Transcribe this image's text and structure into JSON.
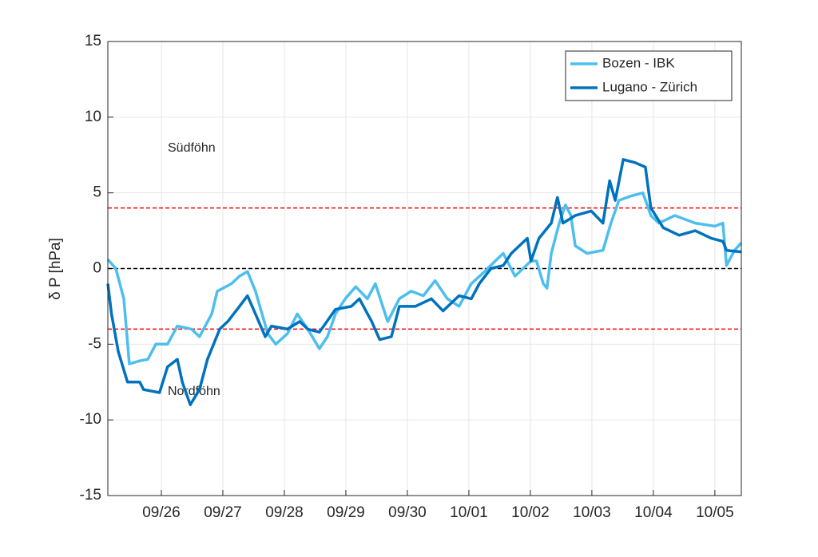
{
  "chart_data": {
    "type": "line",
    "ylabel": "δ P [hPa]",
    "xlim": [
      0.13,
      10.43
    ],
    "ylim": [
      -15,
      15
    ],
    "yticks": [
      -15,
      -10,
      -5,
      0,
      5,
      10,
      15
    ],
    "xticks": [
      {
        "value": 1,
        "label": "09/26"
      },
      {
        "value": 2,
        "label": "09/27"
      },
      {
        "value": 3,
        "label": "09/28"
      },
      {
        "value": 4,
        "label": "09/29"
      },
      {
        "value": 5,
        "label": "09/30"
      },
      {
        "value": 6,
        "label": "10/01"
      },
      {
        "value": 7,
        "label": "10/02"
      },
      {
        "value": 8,
        "label": "10/03"
      },
      {
        "value": 9,
        "label": "10/04"
      },
      {
        "value": 10,
        "label": "10/05"
      }
    ],
    "grid": true,
    "legend": "upper right",
    "reference_lines": [
      {
        "value": 4,
        "color": "#ff0000"
      },
      {
        "value": -4,
        "color": "#ff0000"
      },
      {
        "value": 0,
        "color": "#000000"
      }
    ],
    "annotations": [
      {
        "text": "Südföhn",
        "color": "#ff0000"
      },
      {
        "text": "Nordföhn",
        "color": "#000000"
      }
    ],
    "series": [
      {
        "name": "Bozen - IBK",
        "color": "#4dbeee",
        "x": [
          0.13,
          0.26,
          0.39,
          0.48,
          0.65,
          0.78,
          0.91,
          1.1,
          1.26,
          1.49,
          1.62,
          1.82,
          1.91,
          2.14,
          2.27,
          2.4,
          2.53,
          2.73,
          2.86,
          3.05,
          3.21,
          3.38,
          3.57,
          3.7,
          3.83,
          3.99,
          4.16,
          4.35,
          4.48,
          4.68,
          4.87,
          5.06,
          5.26,
          5.45,
          5.65,
          5.84,
          6.04,
          6.23,
          6.43,
          6.56,
          6.75,
          6.88,
          7.01,
          7.1,
          7.21,
          7.27,
          7.34,
          7.47,
          7.57,
          7.66,
          7.73,
          7.92,
          8.18,
          8.31,
          8.44,
          8.64,
          8.83,
          8.96,
          9.09,
          9.35,
          9.68,
          10.0,
          10.13,
          10.19,
          10.32,
          10.43
        ],
        "values": [
          0.6,
          0,
          -2,
          -6.3,
          -6.1,
          -6,
          -5,
          -5,
          -3.8,
          -4,
          -4.5,
          -3,
          -1.5,
          -1,
          -0.5,
          -0.2,
          -1.5,
          -4.3,
          -5,
          -4.3,
          -3,
          -4,
          -5.3,
          -4.5,
          -3,
          -2,
          -1.2,
          -2,
          -1,
          -3.5,
          -2,
          -1.5,
          -1.8,
          -0.8,
          -2,
          -2.5,
          -1,
          -0.3,
          0.5,
          1,
          -0.5,
          0,
          0.5,
          0.5,
          -1,
          -1.3,
          1,
          3,
          4.2,
          3.5,
          1.5,
          1,
          1.2,
          3,
          4.5,
          4.8,
          5,
          3.5,
          3,
          3.5,
          3,
          2.8,
          3,
          0.2,
          1.2,
          1.7
        ]
      },
      {
        "name": "Lugano - Zürich",
        "color": "#0072bd",
        "x": [
          0.13,
          0.19,
          0.3,
          0.45,
          0.65,
          0.71,
          0.97,
          1.1,
          1.26,
          1.34,
          1.47,
          1.62,
          1.75,
          1.95,
          2.08,
          2.27,
          2.4,
          2.53,
          2.69,
          2.79,
          3.05,
          3.25,
          3.38,
          3.57,
          3.83,
          4.09,
          4.22,
          4.42,
          4.55,
          4.74,
          4.87,
          5.13,
          5.39,
          5.58,
          5.84,
          6.04,
          6.17,
          6.36,
          6.56,
          6.69,
          6.95,
          7.01,
          7.14,
          7.34,
          7.44,
          7.53,
          7.73,
          7.99,
          8.18,
          8.29,
          8.38,
          8.51,
          8.7,
          8.87,
          8.96,
          9.16,
          9.42,
          9.68,
          9.94,
          10.13,
          10.19,
          10.43
        ],
        "values": [
          -1,
          -3,
          -5.5,
          -7.5,
          -7.5,
          -8,
          -8.2,
          -6.5,
          -6,
          -7.5,
          -9,
          -8,
          -6,
          -4,
          -3.5,
          -2.5,
          -1.8,
          -3,
          -4.5,
          -3.8,
          -4,
          -3.5,
          -4,
          -4.2,
          -2.7,
          -2.5,
          -2,
          -3.5,
          -4.7,
          -4.5,
          -2.5,
          -2.5,
          -2,
          -2.8,
          -1.8,
          -2,
          -1,
          0,
          0.2,
          1,
          2,
          0.5,
          2,
          3,
          4.7,
          3,
          3.5,
          3.8,
          3,
          5.8,
          4.5,
          7.2,
          7,
          6.7,
          4,
          2.7,
          2.2,
          2.5,
          2,
          1.8,
          1.2,
          1.1
        ]
      }
    ]
  }
}
